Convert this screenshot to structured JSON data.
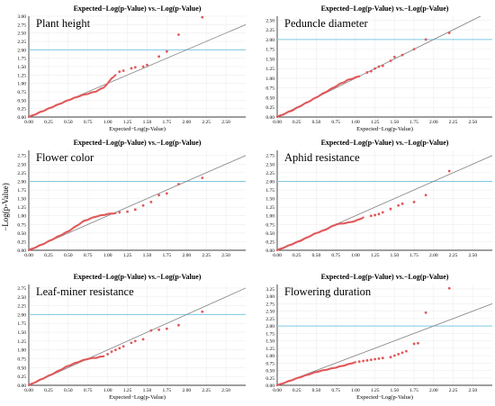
{
  "figure": {
    "ylabel": "−Log(p-Value)",
    "panel_title": "Expected−Log(p-Value) vs.−Log(p-Value)",
    "xlabel": "Expected−Log(p-Value)"
  },
  "colors": {
    "points": "#e0585a",
    "reference_line": "#808080",
    "threshold_line": "#7ec8e3",
    "grid": "#eeeeee"
  },
  "chart_data": [
    {
      "type": "scatter",
      "trait": "Plant height",
      "title": "Expected−Log(p-Value) vs.−Log(p-Value)",
      "xlabel": "Expected−Log(p-Value)",
      "xlim": [
        0,
        2.75
      ],
      "ylim": [
        0,
        3.0
      ],
      "xticks": [
        "0.00",
        "0.25",
        "0.50",
        "0.75",
        "1.00",
        "1.25",
        "1.50",
        "1.75",
        "2.00",
        "2.25",
        "2.50"
      ],
      "yticks": [
        "0.00",
        "0.25",
        "0.50",
        "0.75",
        "1.00",
        "1.25",
        "1.50",
        "1.75",
        "2.00",
        "2.25",
        "2.50",
        "2.75",
        "3.00"
      ],
      "threshold": 2.0,
      "curve": [
        [
          0,
          0
        ],
        [
          0.2,
          0.2
        ],
        [
          0.5,
          0.5
        ],
        [
          0.65,
          0.63
        ],
        [
          0.85,
          0.76
        ],
        [
          0.95,
          0.88
        ],
        [
          1.0,
          1.0
        ],
        [
          1.05,
          1.15
        ],
        [
          1.1,
          1.25
        ]
      ],
      "outliers": [
        [
          1.15,
          1.35
        ],
        [
          1.2,
          1.38
        ],
        [
          1.3,
          1.45
        ],
        [
          1.35,
          1.48
        ],
        [
          1.45,
          1.5
        ],
        [
          1.5,
          1.55
        ],
        [
          1.65,
          1.8
        ],
        [
          1.75,
          1.95
        ],
        [
          1.9,
          2.45
        ],
        [
          2.2,
          2.97
        ]
      ]
    },
    {
      "type": "scatter",
      "trait": "Peduncle diameter",
      "title": "Expected−Log(p-Value) vs.−Log(p-Value)",
      "xlabel": "Expected−Log(p-Value)",
      "xlim": [
        0,
        2.75
      ],
      "ylim": [
        0,
        2.6
      ],
      "xticks": [
        "0.00",
        "0.25",
        "0.50",
        "0.75",
        "1.00",
        "1.25",
        "1.50",
        "1.75",
        "2.00",
        "2.25",
        "2.50"
      ],
      "yticks": [
        "0.00",
        "0.25",
        "0.50",
        "0.75",
        "1.00",
        "1.25",
        "1.50",
        "1.75",
        "2.00",
        "2.25",
        "2.50"
      ],
      "threshold": 2.0,
      "curve": [
        [
          0,
          0
        ],
        [
          0.2,
          0.18
        ],
        [
          0.45,
          0.45
        ],
        [
          0.65,
          0.68
        ],
        [
          0.8,
          0.85
        ],
        [
          0.9,
          0.95
        ],
        [
          1.0,
          1.02
        ],
        [
          1.05,
          1.05
        ]
      ],
      "outliers": [
        [
          1.15,
          1.15
        ],
        [
          1.2,
          1.18
        ],
        [
          1.25,
          1.25
        ],
        [
          1.3,
          1.3
        ],
        [
          1.35,
          1.32
        ],
        [
          1.45,
          1.45
        ],
        [
          1.5,
          1.55
        ],
        [
          1.6,
          1.6
        ],
        [
          1.75,
          1.75
        ],
        [
          1.9,
          2.0
        ],
        [
          2.2,
          2.17
        ]
      ]
    },
    {
      "type": "scatter",
      "trait": "Flower color",
      "title": "Expected−Log(p-Value) vs.−Log(p-Value)",
      "xlabel": "",
      "xlim": [
        0,
        2.75
      ],
      "ylim": [
        0,
        2.9
      ],
      "xticks": [
        "0.00",
        "0.25",
        "0.50",
        "0.75",
        "1.00",
        "1.25",
        "1.50",
        "1.75",
        "2.00",
        "2.25",
        "2.50"
      ],
      "yticks": [
        "0.00",
        "0.25",
        "0.50",
        "0.75",
        "1.00",
        "1.25",
        "1.50",
        "1.75",
        "2.00",
        "2.25",
        "2.50",
        "2.75"
      ],
      "threshold": 2.0,
      "curve": [
        [
          0,
          0
        ],
        [
          0.2,
          0.2
        ],
        [
          0.5,
          0.55
        ],
        [
          0.7,
          0.85
        ],
        [
          0.85,
          0.98
        ],
        [
          1.0,
          1.05
        ],
        [
          1.1,
          1.08
        ]
      ],
      "outliers": [
        [
          1.15,
          1.1
        ],
        [
          1.25,
          1.12
        ],
        [
          1.35,
          1.18
        ],
        [
          1.45,
          1.3
        ],
        [
          1.55,
          1.4
        ],
        [
          1.65,
          1.6
        ],
        [
          1.75,
          1.65
        ],
        [
          1.9,
          1.92
        ],
        [
          2.2,
          2.1
        ]
      ]
    },
    {
      "type": "scatter",
      "trait": "Aphid resistance",
      "title": "Expected−Log(p-Value) vs.−Log(p-Value)",
      "xlabel": "",
      "xlim": [
        0,
        2.75
      ],
      "ylim": [
        0,
        2.9
      ],
      "xticks": [
        "0.00",
        "0.25",
        "0.50",
        "0.75",
        "1.00",
        "1.25",
        "1.50",
        "1.75",
        "2.00",
        "2.25",
        "2.50"
      ],
      "yticks": [
        "0.00",
        "0.25",
        "0.50",
        "0.75",
        "1.00",
        "1.25",
        "1.50",
        "1.75",
        "2.00",
        "2.25",
        "2.50",
        "2.75"
      ],
      "threshold": 2.0,
      "curve": [
        [
          0,
          0
        ],
        [
          0.3,
          0.28
        ],
        [
          0.5,
          0.5
        ],
        [
          0.6,
          0.58
        ],
        [
          0.75,
          0.75
        ],
        [
          0.9,
          0.8
        ],
        [
          1.0,
          0.85
        ],
        [
          1.1,
          0.95
        ]
      ],
      "outliers": [
        [
          1.2,
          1.0
        ],
        [
          1.25,
          1.02
        ],
        [
          1.3,
          1.05
        ],
        [
          1.35,
          1.1
        ],
        [
          1.45,
          1.2
        ],
        [
          1.55,
          1.3
        ],
        [
          1.6,
          1.35
        ],
        [
          1.75,
          1.4
        ],
        [
          1.9,
          1.6
        ],
        [
          2.2,
          2.3
        ]
      ]
    },
    {
      "type": "scatter",
      "trait": "Leaf-miner resistance",
      "title": "Expected−Log(p-Value) vs.−Log(p-Value)",
      "xlabel": "Expected−Log(p-Value)",
      "xlim": [
        0,
        2.75
      ],
      "ylim": [
        0,
        2.85
      ],
      "xticks": [
        "0.00",
        "0.25",
        "0.50",
        "0.75",
        "1.00",
        "1.25",
        "1.50",
        "1.75",
        "2.00",
        "2.25",
        "2.50"
      ],
      "yticks": [
        "0.00",
        "0.25",
        "0.50",
        "0.75",
        "1.00",
        "1.25",
        "1.50",
        "1.75",
        "2.00",
        "2.25",
        "2.50",
        "2.75"
      ],
      "threshold": 2.0,
      "curve": [
        [
          0,
          0
        ],
        [
          0.3,
          0.32
        ],
        [
          0.5,
          0.55
        ],
        [
          0.65,
          0.68
        ],
        [
          0.75,
          0.75
        ],
        [
          0.85,
          0.78
        ],
        [
          0.95,
          0.82
        ]
      ],
      "outliers": [
        [
          1.0,
          0.88
        ],
        [
          1.05,
          0.95
        ],
        [
          1.1,
          1.0
        ],
        [
          1.15,
          1.05
        ],
        [
          1.2,
          1.1
        ],
        [
          1.3,
          1.2
        ],
        [
          1.35,
          1.25
        ],
        [
          1.45,
          1.3
        ],
        [
          1.55,
          1.55
        ],
        [
          1.65,
          1.57
        ],
        [
          1.75,
          1.6
        ],
        [
          1.9,
          1.7
        ],
        [
          2.2,
          2.08
        ]
      ]
    },
    {
      "type": "scatter",
      "trait": "Flowering duration",
      "title": "Expected−Log(p-Value) vs.−Log(p-Value)",
      "xlabel": "Expected−Log(p-Value)",
      "xlim": [
        0,
        2.75
      ],
      "ylim": [
        0,
        3.4
      ],
      "xticks": [
        "0.00",
        "0.25",
        "0.50",
        "0.75",
        "1.00",
        "1.25",
        "1.50",
        "1.75",
        "2.00",
        "2.25",
        "2.50"
      ],
      "yticks": [
        "0.00",
        "0.25",
        "0.50",
        "0.75",
        "1.00",
        "1.25",
        "1.50",
        "1.75",
        "2.00",
        "2.25",
        "2.50",
        "2.75",
        "3.00",
        "3.25"
      ],
      "threshold": 2.0,
      "curve": [
        [
          0,
          0
        ],
        [
          0.3,
          0.28
        ],
        [
          0.5,
          0.45
        ],
        [
          0.75,
          0.6
        ],
        [
          0.9,
          0.7
        ],
        [
          1.0,
          0.78
        ]
      ],
      "outliers": [
        [
          1.05,
          0.8
        ],
        [
          1.1,
          0.82
        ],
        [
          1.15,
          0.84
        ],
        [
          1.2,
          0.86
        ],
        [
          1.25,
          0.88
        ],
        [
          1.3,
          0.9
        ],
        [
          1.35,
          0.92
        ],
        [
          1.45,
          0.95
        ],
        [
          1.5,
          1.0
        ],
        [
          1.55,
          1.05
        ],
        [
          1.6,
          1.1
        ],
        [
          1.65,
          1.15
        ],
        [
          1.75,
          1.4
        ],
        [
          1.8,
          1.42
        ],
        [
          1.9,
          2.45
        ],
        [
          2.2,
          3.27
        ]
      ]
    }
  ]
}
